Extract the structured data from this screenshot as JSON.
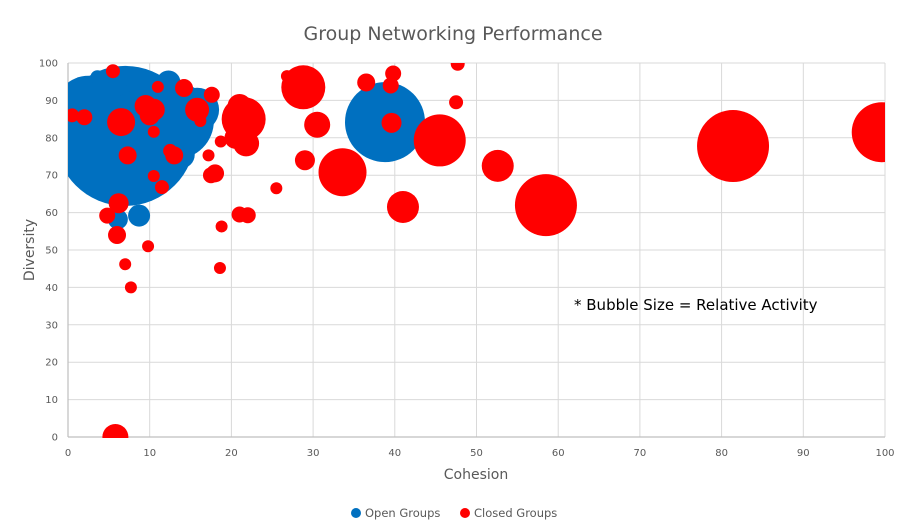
{
  "chart_data": {
    "type": "bubble",
    "title": "Group Networking Performance",
    "xlabel": "Cohesion",
    "ylabel": "Diversity",
    "xlim": [
      0,
      100
    ],
    "ylim": [
      0,
      100
    ],
    "x_ticks": [
      0,
      10,
      20,
      30,
      40,
      50,
      60,
      70,
      80,
      90,
      100
    ],
    "y_ticks": [
      0,
      10,
      20,
      30,
      40,
      50,
      60,
      70,
      80,
      90,
      100
    ],
    "grid": true,
    "legend_position": "bottom",
    "annotation": "* Bubble Size = Relative Activity",
    "series": [
      {
        "name": "Open Groups",
        "color": "#0070C0",
        "points": [
          {
            "x": 7.0,
            "y": 80.5,
            "r": 70
          },
          {
            "x": 2.5,
            "y": 87.5,
            "r": 34
          },
          {
            "x": 3.6,
            "y": 96.2,
            "r": 7
          },
          {
            "x": 6.0,
            "y": 91.5,
            "r": 13
          },
          {
            "x": 7.5,
            "y": 89.0,
            "r": 12
          },
          {
            "x": 9.6,
            "y": 93.6,
            "r": 10
          },
          {
            "x": 12.3,
            "y": 94.8,
            "r": 12
          },
          {
            "x": 13.2,
            "y": 84.5,
            "r": 38
          },
          {
            "x": 15.8,
            "y": 87.5,
            "r": 22
          },
          {
            "x": 13.8,
            "y": 75.5,
            "r": 14
          },
          {
            "x": 8.7,
            "y": 59.2,
            "r": 11
          },
          {
            "x": 6.1,
            "y": 58.2,
            "r": 10
          },
          {
            "x": 38.8,
            "y": 84.2,
            "r": 40
          }
        ]
      },
      {
        "name": "Closed Groups",
        "color": "#FF0000",
        "points": [
          {
            "x": 5.5,
            "y": 97.8,
            "r": 7
          },
          {
            "x": 0.5,
            "y": 86.0,
            "r": 7
          },
          {
            "x": 2.0,
            "y": 85.5,
            "r": 8
          },
          {
            "x": 6.5,
            "y": 84.2,
            "r": 14
          },
          {
            "x": 9.5,
            "y": 88.5,
            "r": 11
          },
          {
            "x": 10.5,
            "y": 87.5,
            "r": 11
          },
          {
            "x": 10.0,
            "y": 86.0,
            "r": 10
          },
          {
            "x": 11.0,
            "y": 93.6,
            "r": 6
          },
          {
            "x": 10.5,
            "y": 81.6,
            "r": 6
          },
          {
            "x": 7.3,
            "y": 75.3,
            "r": 9
          },
          {
            "x": 12.5,
            "y": 76.5,
            "r": 7
          },
          {
            "x": 13.0,
            "y": 75.3,
            "r": 9
          },
          {
            "x": 14.2,
            "y": 93.3,
            "r": 9
          },
          {
            "x": 15.8,
            "y": 87.5,
            "r": 12
          },
          {
            "x": 16.2,
            "y": 84.5,
            "r": 6
          },
          {
            "x": 17.6,
            "y": 91.5,
            "r": 8
          },
          {
            "x": 10.5,
            "y": 69.8,
            "r": 6
          },
          {
            "x": 11.5,
            "y": 66.8,
            "r": 7
          },
          {
            "x": 6.2,
            "y": 62.5,
            "r": 10
          },
          {
            "x": 4.8,
            "y": 59.2,
            "r": 8
          },
          {
            "x": 6.0,
            "y": 54.0,
            "r": 9
          },
          {
            "x": 9.8,
            "y": 51.0,
            "r": 6
          },
          {
            "x": 7.0,
            "y": 46.2,
            "r": 6
          },
          {
            "x": 7.7,
            "y": 40.0,
            "r": 6
          },
          {
            "x": 5.8,
            "y": 0.0,
            "r": 13
          },
          {
            "x": 21.0,
            "y": 88.5,
            "r": 12
          },
          {
            "x": 21.5,
            "y": 85.0,
            "r": 22
          },
          {
            "x": 20.5,
            "y": 80.0,
            "r": 11
          },
          {
            "x": 21.8,
            "y": 78.5,
            "r": 13
          },
          {
            "x": 18.7,
            "y": 79.0,
            "r": 6
          },
          {
            "x": 17.2,
            "y": 75.3,
            "r": 6
          },
          {
            "x": 18.0,
            "y": 70.5,
            "r": 9
          },
          {
            "x": 17.5,
            "y": 70.0,
            "r": 8
          },
          {
            "x": 25.5,
            "y": 66.5,
            "r": 6
          },
          {
            "x": 21.0,
            "y": 59.5,
            "r": 8
          },
          {
            "x": 22.0,
            "y": 59.3,
            "r": 8
          },
          {
            "x": 18.8,
            "y": 56.3,
            "r": 6
          },
          {
            "x": 18.6,
            "y": 45.2,
            "r": 6
          },
          {
            "x": 26.8,
            "y": 96.5,
            "r": 6
          },
          {
            "x": 28.8,
            "y": 93.5,
            "r": 22
          },
          {
            "x": 30.5,
            "y": 83.5,
            "r": 13
          },
          {
            "x": 29.0,
            "y": 74.0,
            "r": 10
          },
          {
            "x": 33.6,
            "y": 70.8,
            "r": 24
          },
          {
            "x": 36.5,
            "y": 94.8,
            "r": 9
          },
          {
            "x": 39.8,
            "y": 97.2,
            "r": 8
          },
          {
            "x": 39.5,
            "y": 94.0,
            "r": 8
          },
          {
            "x": 39.6,
            "y": 84.0,
            "r": 10
          },
          {
            "x": 41.0,
            "y": 61.5,
            "r": 16
          },
          {
            "x": 45.5,
            "y": 79.3,
            "r": 26
          },
          {
            "x": 47.7,
            "y": 99.8,
            "r": 7
          },
          {
            "x": 47.5,
            "y": 89.5,
            "r": 7
          },
          {
            "x": 52.6,
            "y": 72.5,
            "r": 16
          },
          {
            "x": 58.5,
            "y": 62.0,
            "r": 31
          },
          {
            "x": 81.4,
            "y": 77.8,
            "r": 36
          },
          {
            "x": 99.6,
            "y": 81.5,
            "r": 30
          }
        ]
      }
    ]
  },
  "legend": {
    "items": [
      {
        "label": "Open Groups",
        "color": "#0070C0"
      },
      {
        "label": "Closed Groups",
        "color": "#FF0000"
      }
    ]
  }
}
